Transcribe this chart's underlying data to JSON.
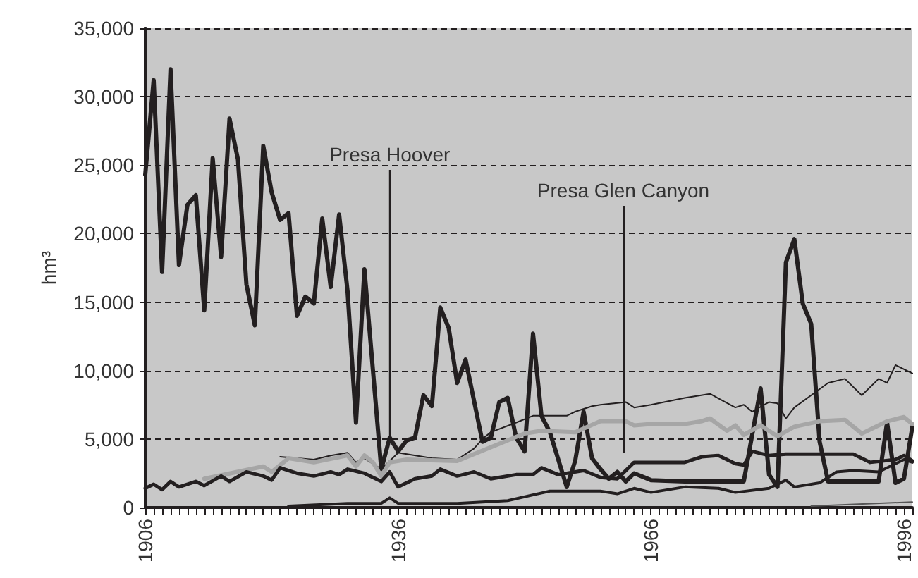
{
  "chart_data": {
    "type": "line",
    "ylabel": "hm³",
    "xlim": [
      1906,
      1997
    ],
    "ylim": [
      0,
      35000
    ],
    "yticks": [
      0,
      {
        "value": 5000,
        "label": "5,000"
      },
      {
        "value": 10000,
        "label": "10,000"
      },
      {
        "value": 15000,
        "label": "15,000"
      },
      {
        "value": 20000,
        "label": "20,000"
      },
      {
        "value": 25000,
        "label": "25,000"
      },
      {
        "value": 30000,
        "label": "30,000"
      },
      {
        "value": 35000,
        "label": "35,000"
      }
    ],
    "xticks": [
      1906,
      {
        "value": 1907,
        "label": null
      },
      {
        "value": 1908,
        "label": null
      },
      {
        "value": 1909,
        "label": null
      },
      {
        "value": 1910,
        "label": null
      },
      {
        "value": 1911,
        "label": null
      },
      {
        "value": 1912,
        "label": null
      },
      {
        "value": 1913,
        "label": null
      },
      {
        "value": 1914,
        "label": null
      },
      {
        "value": 1915,
        "label": null
      },
      {
        "value": 1916,
        "label": null
      },
      {
        "value": 1917,
        "label": null
      },
      {
        "value": 1918,
        "label": null
      },
      {
        "value": 1919,
        "label": null
      },
      {
        "value": 1920,
        "label": null
      },
      {
        "value": 1921,
        "label": null
      },
      {
        "value": 1922,
        "label": null
      },
      {
        "value": 1923,
        "label": null
      },
      {
        "value": 1924,
        "label": null
      },
      {
        "value": 1925,
        "label": null
      },
      {
        "value": 1926,
        "label": null
      },
      {
        "value": 1927,
        "label": null
      },
      {
        "value": 1928,
        "label": null
      },
      {
        "value": 1929,
        "label": null
      },
      {
        "value": 1930,
        "label": null
      },
      {
        "value": 1931,
        "label": null
      },
      {
        "value": 1932,
        "label": null
      },
      {
        "value": 1933,
        "label": null
      },
      {
        "value": 1934,
        "label": null
      },
      {
        "value": 1935,
        "label": null
      },
      1936,
      {
        "value": 1937,
        "label": null
      },
      {
        "value": 1938,
        "label": null
      },
      {
        "value": 1939,
        "label": null
      },
      {
        "value": 1940,
        "label": null
      },
      {
        "value": 1941,
        "label": null
      },
      {
        "value": 1942,
        "label": null
      },
      {
        "value": 1943,
        "label": null
      },
      {
        "value": 1944,
        "label": null
      },
      {
        "value": 1945,
        "label": null
      },
      {
        "value": 1946,
        "label": null
      },
      {
        "value": 1947,
        "label": null
      },
      {
        "value": 1948,
        "label": null
      },
      {
        "value": 1949,
        "label": null
      },
      {
        "value": 1950,
        "label": null
      },
      {
        "value": 1951,
        "label": null
      },
      {
        "value": 1952,
        "label": null
      },
      {
        "value": 1953,
        "label": null
      },
      {
        "value": 1954,
        "label": null
      },
      {
        "value": 1955,
        "label": null
      },
      {
        "value": 1956,
        "label": null
      },
      {
        "value": 1957,
        "label": null
      },
      {
        "value": 1958,
        "label": null
      },
      {
        "value": 1959,
        "label": null
      },
      {
        "value": 1960,
        "label": null
      },
      {
        "value": 1961,
        "label": null
      },
      {
        "value": 1962,
        "label": null
      },
      {
        "value": 1963,
        "label": null
      },
      {
        "value": 1964,
        "label": null
      },
      {
        "value": 1965,
        "label": null
      },
      1966,
      {
        "value": 1967,
        "label": null
      },
      {
        "value": 1968,
        "label": null
      },
      {
        "value": 1969,
        "label": null
      },
      {
        "value": 1970,
        "label": null
      },
      {
        "value": 1971,
        "label": null
      },
      {
        "value": 1972,
        "label": null
      },
      {
        "value": 1973,
        "label": null
      },
      {
        "value": 1974,
        "label": null
      },
      {
        "value": 1975,
        "label": null
      },
      {
        "value": 1976,
        "label": null
      },
      {
        "value": 1977,
        "label": null
      },
      {
        "value": 1978,
        "label": null
      },
      {
        "value": 1979,
        "label": null
      },
      {
        "value": 1980,
        "label": null
      },
      {
        "value": 1981,
        "label": null
      },
      {
        "value": 1982,
        "label": null
      },
      {
        "value": 1983,
        "label": null
      },
      {
        "value": 1984,
        "label": null
      },
      {
        "value": 1985,
        "label": null
      },
      {
        "value": 1986,
        "label": null
      },
      {
        "value": 1987,
        "label": null
      },
      {
        "value": 1988,
        "label": null
      },
      {
        "value": 1989,
        "label": null
      },
      {
        "value": 1990,
        "label": null
      },
      {
        "value": 1991,
        "label": null
      },
      {
        "value": 1992,
        "label": null
      },
      {
        "value": 1993,
        "label": null
      },
      {
        "value": 1994,
        "label": null
      },
      {
        "value": 1995,
        "label": null
      },
      1996,
      {
        "value": 1997,
        "label": null
      }
    ],
    "grid": "y",
    "marker": "none",
    "line_style": "solid",
    "annotations": [
      {
        "text": "Presa Hoover",
        "x": 1935,
        "y": 5100
      },
      "Presa Glen Canyon"
    ],
    "series": [
      {
        "color": "#231f20",
        "x": [
          1906,
          1907,
          1908,
          1909,
          1910,
          1911,
          1912,
          1913,
          1914,
          1915,
          1916,
          1917,
          1918,
          1919,
          1920,
          1921,
          1922,
          1923,
          1924,
          1925,
          1926,
          1927,
          1928,
          1929,
          1930,
          1931,
          1932,
          1934,
          1935,
          1936,
          1937,
          1938,
          1939,
          1940,
          1941,
          1942,
          1943,
          1944,
          1946,
          1947,
          1948,
          1949,
          1950,
          1951,
          1952,
          1953,
          1954,
          1956,
          1957,
          1958,
          1959,
          1960,
          1961,
          1962,
          1963,
          1964,
          1966,
          1970,
          1977,
          1979,
          1980,
          1981,
          1982,
          1983,
          1984,
          1985,
          1986,
          1987,
          1993,
          1994,
          1995,
          1996,
          1997
        ],
        "values": [
          24300,
          31200,
          17200,
          32000,
          17700,
          22100,
          22800,
          14400,
          25500,
          18300,
          28400,
          25400,
          16300,
          13300,
          26400,
          23000,
          21000,
          21500,
          14000,
          15400,
          14900,
          21100,
          16100,
          21400,
          15800,
          6200,
          17400,
          2800,
          5100,
          4100,
          4900,
          5100,
          8200,
          7400,
          14600,
          13100,
          9100,
          10800,
          4800,
          5100,
          7700,
          8000,
          5100,
          4100,
          12700,
          6700,
          5500,
          1500,
          3400,
          7000,
          3600,
          2800,
          2100,
          2600,
          1900,
          2500,
          2000,
          1900,
          1900,
          8700,
          2400,
          1500,
          17900,
          19600,
          14900,
          13400,
          4800,
          1900,
          1900,
          6200,
          1800,
          2100,
          5900
        ]
      },
      {
        "color": "#231f20",
        "x": [
          1922,
          1926,
          1928,
          1930,
          1931,
          1932,
          1934,
          1936,
          1940,
          1943,
          1945,
          1946,
          1947,
          1950,
          1952,
          1956,
          1957,
          1959,
          1960,
          1963,
          1964,
          1966,
          1970,
          1973,
          1976,
          1977,
          1978,
          1980,
          1981,
          1982,
          1983,
          1985,
          1987,
          1989,
          1991,
          1993,
          1994,
          1995,
          1997
        ],
        "values": [
          3700,
          3500,
          3800,
          4000,
          3300,
          3600,
          2800,
          4000,
          3600,
          3500,
          4300,
          5000,
          5500,
          6200,
          6700,
          6700,
          7000,
          7400,
          7500,
          7700,
          7300,
          7500,
          8000,
          8300,
          7300,
          7500,
          7000,
          7700,
          7600,
          6500,
          7300,
          8200,
          9100,
          9400,
          8200,
          9400,
          9100,
          10400,
          9800
        ]
      },
      {
        "color": "#a6a6a6",
        "x": [
          1913,
          1920,
          1921,
          1923,
          1926,
          1930,
          1931,
          1932,
          1933,
          1934,
          1935,
          1937,
          1943,
          1947,
          1951,
          1953,
          1957,
          1960,
          1963,
          1964,
          1966,
          1970,
          1972,
          1973,
          1975,
          1976,
          1977,
          1979,
          1981,
          1983,
          1986,
          1989,
          1991,
          1993,
          1994,
          1996,
          1997
        ],
        "values": [
          2100,
          3000,
          2600,
          3600,
          3300,
          3800,
          3000,
          3800,
          3300,
          2300,
          3300,
          3500,
          3400,
          4400,
          5400,
          5600,
          5500,
          6300,
          6300,
          6000,
          6100,
          6100,
          6300,
          6500,
          5600,
          6000,
          5300,
          6000,
          5200,
          5900,
          6300,
          6400,
          5400,
          6000,
          6300,
          6600,
          6100
        ]
      },
      {
        "color": "#231f20",
        "x": [
          1906,
          1907,
          1908,
          1909,
          1910,
          1912,
          1913,
          1915,
          1916,
          1918,
          1920,
          1921,
          1922,
          1924,
          1926,
          1928,
          1929,
          1930,
          1932,
          1934,
          1935,
          1936,
          1938,
          1940,
          1941,
          1943,
          1945,
          1947,
          1950,
          1952,
          1953,
          1955,
          1958,
          1960,
          1962,
          1964,
          1970,
          1972,
          1974,
          1976,
          1977,
          1978,
          1980,
          1982,
          1984,
          1986,
          1990,
          1992,
          1995,
          1996,
          1997
        ],
        "values": [
          1400,
          1700,
          1300,
          1900,
          1500,
          1900,
          1600,
          2300,
          1900,
          2600,
          2300,
          2000,
          2900,
          2500,
          2300,
          2600,
          2400,
          2800,
          2500,
          1900,
          2600,
          1500,
          2100,
          2300,
          2800,
          2300,
          2600,
          2100,
          2400,
          2400,
          2900,
          2400,
          2700,
          2200,
          2100,
          3300,
          3300,
          3700,
          3800,
          3200,
          3100,
          4100,
          3800,
          3900,
          3900,
          3900,
          3900,
          3300,
          3500,
          3800,
          3400
        ]
      },
      {
        "color": "#231f20",
        "x": [
          1923,
          1930,
          1934,
          1935,
          1936,
          1943,
          1949,
          1954,
          1960,
          1962,
          1964,
          1966,
          1970,
          1974,
          1976,
          1980,
          1982,
          1983,
          1986,
          1988,
          1990,
          1993,
          1996,
          1997
        ],
        "values": [
          100,
          300,
          300,
          700,
          300,
          300,
          500,
          1200,
          1200,
          1000,
          1400,
          1100,
          1500,
          1400,
          1100,
          1400,
          2000,
          1500,
          1800,
          2600,
          2700,
          2600,
          3500,
          3300
        ]
      },
      {
        "color": "#555555",
        "x": [
          1985,
          1997
        ],
        "values": [
          100,
          400
        ]
      }
    ]
  }
}
